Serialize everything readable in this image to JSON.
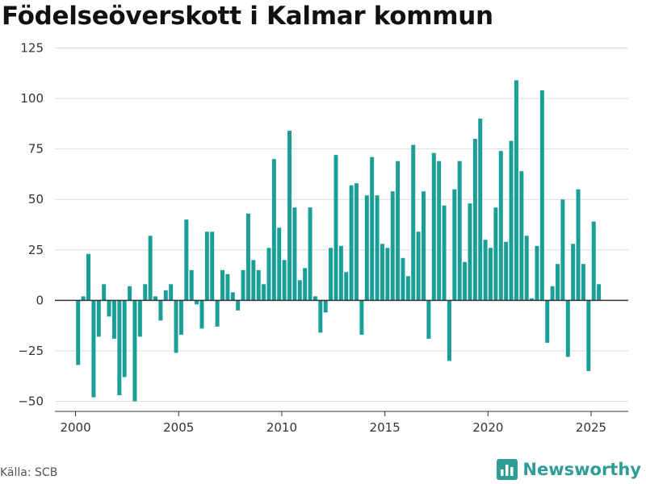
{
  "header": {
    "title": "Födelseöverskott i Kalmar kommun"
  },
  "footer": {
    "source": "Källa: SCB",
    "brand": "Newsworthy"
  },
  "colors": {
    "bar": "#1a9e98",
    "brand": "#2f9c95",
    "grid": "#dddddd",
    "zero_line": "#333333"
  },
  "icons": {
    "brand_logo": "bar-chart-logo-icon"
  },
  "chart_data": {
    "type": "bar",
    "title": "Födelseöverskott i Kalmar kommun",
    "xlabel": "",
    "ylabel": "",
    "grid": "horizontal",
    "legend": "none",
    "ylim": [
      -55,
      128
    ],
    "xlim": [
      1999.0,
      2026.8
    ],
    "yticks": [
      -50,
      -25,
      0,
      25,
      50,
      75,
      100,
      125
    ],
    "xticks": [
      2000,
      2005,
      2010,
      2015,
      2020,
      2025
    ],
    "x_start": 2000.0,
    "x_step": 0.25,
    "values": [
      -32,
      2,
      23,
      -48,
      -18,
      8,
      -8,
      -19,
      -47,
      -38,
      7,
      -50,
      -18,
      8,
      32,
      2,
      -10,
      5,
      8,
      -26,
      -17,
      40,
      15,
      -2,
      -14,
      34,
      34,
      -13,
      15,
      13,
      4,
      -5,
      15,
      43,
      20,
      15,
      8,
      26,
      70,
      36,
      20,
      84,
      46,
      10,
      16,
      46,
      2,
      -16,
      -6,
      26,
      72,
      27,
      14,
      57,
      58,
      -17,
      52,
      71,
      52,
      28,
      26,
      54,
      69,
      21,
      12,
      77,
      34,
      54,
      -19,
      73,
      69,
      47,
      -30,
      55,
      69,
      19,
      48,
      80,
      90,
      30,
      26,
      46,
      74,
      29,
      79,
      109,
      64,
      32,
      1,
      27,
      104,
      -21,
      7,
      18,
      50,
      -28,
      28,
      55,
      18,
      -35,
      39,
      8
    ]
  }
}
